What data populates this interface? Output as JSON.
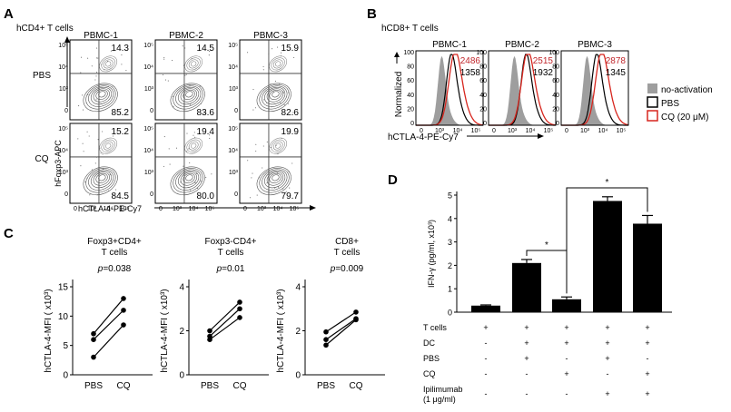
{
  "panels": {
    "a": {
      "letter": "A",
      "header": "hCD4+ T cells",
      "columns": [
        "PBMC-1",
        "PBMC-2",
        "PBMC-3"
      ],
      "rows": [
        {
          "label": "PBS",
          "top": [
            "14.3",
            "14.5",
            "15.9"
          ],
          "bottom": [
            "85.2",
            "83.6",
            "82.6"
          ]
        },
        {
          "label": "CQ",
          "top": [
            "15.2",
            "19.4",
            "19.9"
          ],
          "bottom": [
            "84.5",
            "80.0",
            "79.7"
          ]
        }
      ],
      "y_axis": "hFoxp3-APC",
      "x_axis": "hCTLA-4-PE-Cy7",
      "y_ticks": [
        "10⁵",
        "10⁴",
        "10³",
        "0"
      ],
      "x_ticks": [
        "0",
        "10³",
        "10⁴",
        "10⁵"
      ]
    },
    "b": {
      "letter": "B",
      "header": "hCD8+ T cells",
      "columns": [
        {
          "name": "PBMC-1",
          "cq": "2486",
          "pbs": "1358"
        },
        {
          "name": "PBMC-2",
          "cq": "2515",
          "pbs": "1932"
        },
        {
          "name": "PBMC-3",
          "cq": "2878",
          "pbs": "1345"
        }
      ],
      "y_axis": "Normalized",
      "x_axis": "hCTLA-4-PE-Cy7",
      "y_ticks": [
        "100",
        "80",
        "60",
        "40",
        "20",
        "0"
      ],
      "x_ticks": [
        "0",
        "10³",
        "10⁴",
        "10⁵"
      ],
      "legend": [
        {
          "name": "no-activation",
          "color": "#9e9e9e",
          "style": "fill"
        },
        {
          "name": "PBS",
          "color": "#000000",
          "style": "outline"
        },
        {
          "name": "CQ (20 μM)",
          "color": "#d7261e",
          "style": "outline"
        }
      ],
      "cq_color": "#c0282d"
    },
    "c": {
      "letter": "C",
      "x_labels": [
        "PBS",
        "CQ"
      ],
      "plots": [
        {
          "title_lines": [
            "Foxp3+CD4+",
            "T cells"
          ],
          "p_italic": "p",
          "p_value": "=0.038",
          "ylabel": "hCTLA-4-MFI ( x10³)",
          "y_ticks": [
            "0",
            "5",
            "10",
            "15"
          ],
          "ymax": 15,
          "pairs": [
            [
              3,
              8.5
            ],
            [
              6,
              11
            ],
            [
              7,
              13
            ]
          ]
        },
        {
          "title_lines": [
            "Foxp3-CD4+",
            "T cells"
          ],
          "p_italic": "p",
          "p_value": "=0.01",
          "ylabel": "hCTLA-4-MFI ( x10³)",
          "y_ticks": [
            "0",
            "2",
            "4"
          ],
          "ymax": 4,
          "pairs": [
            [
              1.6,
              2.6
            ],
            [
              1.75,
              3.0
            ],
            [
              2.0,
              3.3
            ]
          ]
        },
        {
          "title_lines": [
            "CD8+",
            "T cells"
          ],
          "p_italic": "p",
          "p_value": "=0.009",
          "ylabel": "hCTLA-4-MFI ( x10³)",
          "y_ticks": [
            "0",
            "2",
            "4"
          ],
          "ymax": 4,
          "pairs": [
            [
              1.35,
              2.5
            ],
            [
              1.6,
              2.55
            ],
            [
              1.95,
              2.85
            ]
          ]
        }
      ]
    },
    "d": {
      "letter": "D",
      "chart_data": {
        "type": "bar",
        "ylabel": "IFN-γ (pg/ml, x10³)",
        "y_ticks": [
          "0",
          "1",
          "2",
          "3",
          "4",
          "5"
        ],
        "ylim": [
          0,
          5
        ],
        "values": [
          0.28,
          2.1,
          0.55,
          4.75,
          3.78
        ],
        "errors": [
          0.03,
          0.15,
          0.1,
          0.18,
          0.35
        ],
        "significance": [
          {
            "from": 1,
            "to": 2,
            "label": "*"
          },
          {
            "from": 2,
            "to": 4,
            "label": "*"
          }
        ],
        "conditions": [
          {
            "name": "T cells",
            "signs": [
              "+",
              "+",
              "+",
              "+",
              "+"
            ]
          },
          {
            "name": "DC",
            "signs": [
              "-",
              "+",
              "+",
              "+",
              "+"
            ]
          },
          {
            "name": "PBS",
            "signs": [
              "-",
              "+",
              "-",
              "+",
              "-"
            ]
          },
          {
            "name": "CQ",
            "signs": [
              "-",
              "-",
              "+",
              "-",
              "+"
            ]
          },
          {
            "name": "Ipilimumab",
            "name2": "(1 μg/ml)",
            "signs": [
              "-",
              "-",
              "-",
              "+",
              "+"
            ]
          }
        ]
      }
    }
  }
}
